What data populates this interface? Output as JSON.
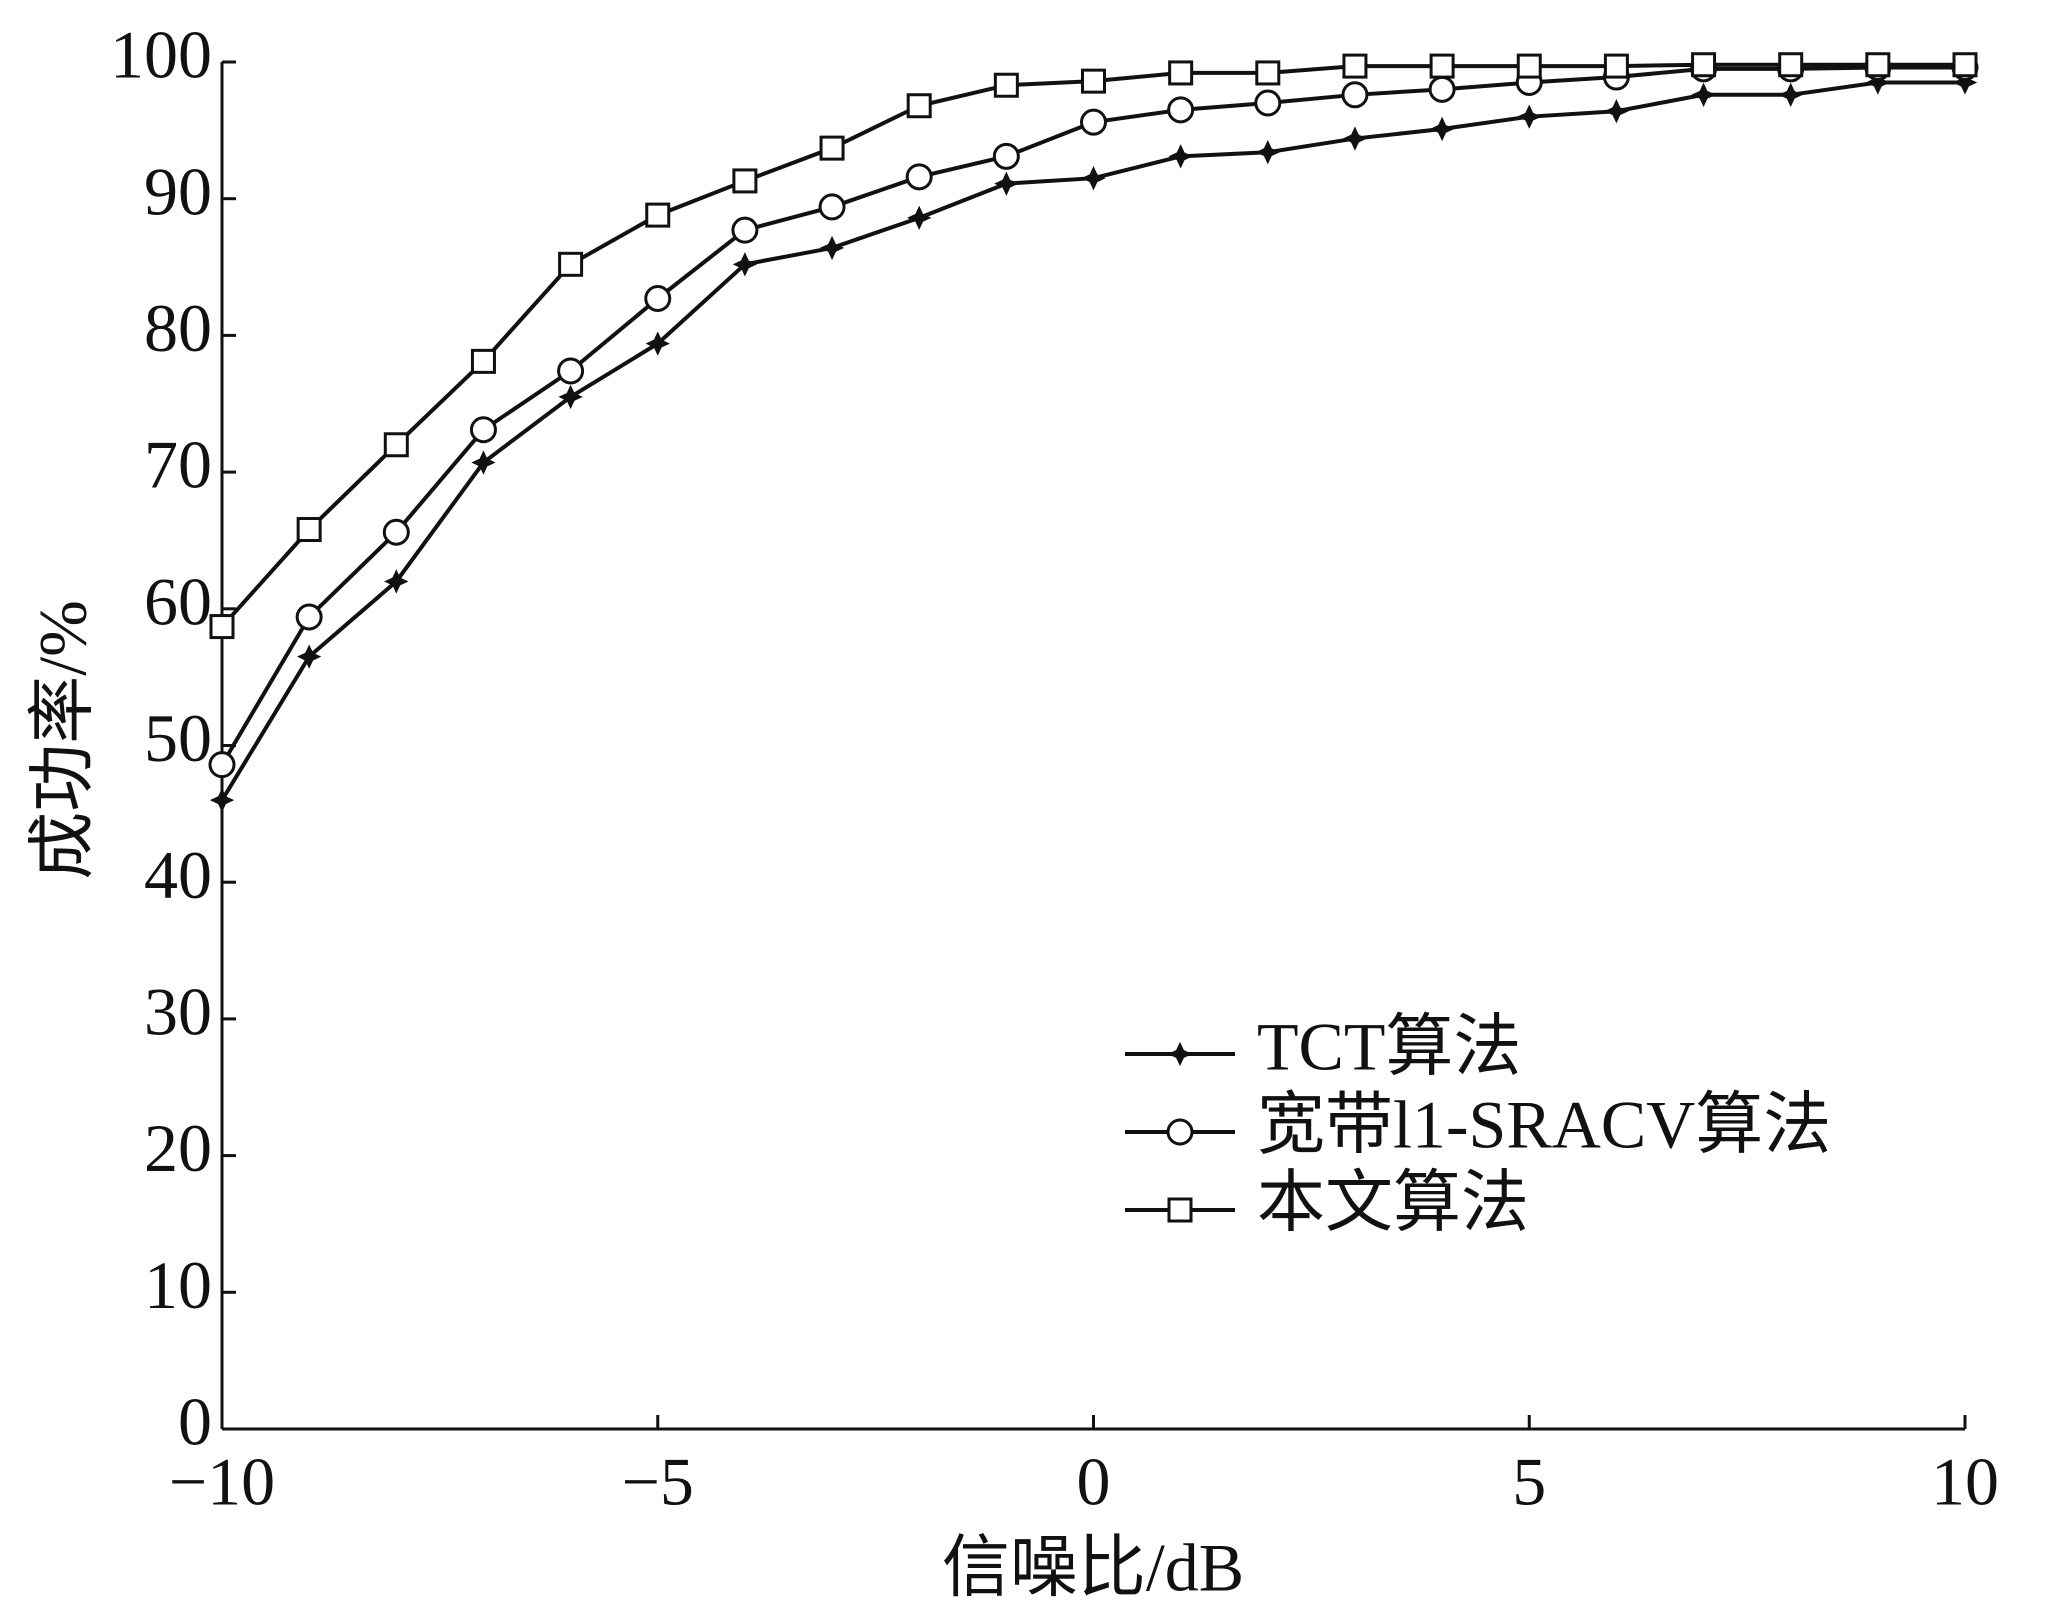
{
  "chart_data": {
    "type": "line",
    "x_label": "信噪比/dB",
    "y_label": "成功率/%",
    "x": [
      -10,
      -9,
      -8,
      -7,
      -6,
      -5,
      -4,
      -3,
      -2,
      -1,
      0,
      1,
      2,
      3,
      4,
      5,
      6,
      7,
      8,
      9,
      10
    ],
    "series": [
      {
        "name": "TCT算法",
        "color": "#111111",
        "marker": "star",
        "values": [
          46,
          56.5,
          62,
          70.7,
          75.5,
          79.4,
          85.2,
          86.4,
          88.6,
          91.1,
          91.5,
          93.1,
          93.4,
          94.4,
          95.1,
          96,
          96.4,
          97.6,
          97.6,
          98.5,
          98.5
        ]
      },
      {
        "name": "宽带l1-SRACV算法",
        "color": "#111111",
        "marker": "circle",
        "values": [
          48.6,
          59.4,
          65.6,
          73.1,
          77.4,
          82.7,
          87.7,
          89.4,
          91.6,
          93.1,
          95.6,
          96.5,
          97,
          97.6,
          98,
          98.5,
          98.9,
          99.5,
          99.5,
          99.6,
          99.6
        ]
      },
      {
        "name": "本文算法",
        "color": "#111111",
        "marker": "square",
        "values": [
          58.7,
          65.8,
          72,
          78.1,
          85.2,
          88.8,
          91.3,
          93.7,
          96.8,
          98.3,
          98.6,
          99.2,
          99.2,
          99.7,
          99.7,
          99.7,
          99.7,
          99.8,
          99.8,
          99.8,
          99.8
        ]
      }
    ],
    "xlim": [
      -10,
      10
    ],
    "xticks": [
      {
        "value": -10,
        "label": "−10"
      },
      {
        "value": -5,
        "label": "−5"
      },
      0,
      5,
      10
    ],
    "ylim": [
      0,
      100
    ],
    "yticks": [
      0,
      10,
      20,
      30,
      40,
      50,
      60,
      70,
      80,
      90,
      100
    ],
    "grid": false,
    "legend": "lower-right"
  }
}
